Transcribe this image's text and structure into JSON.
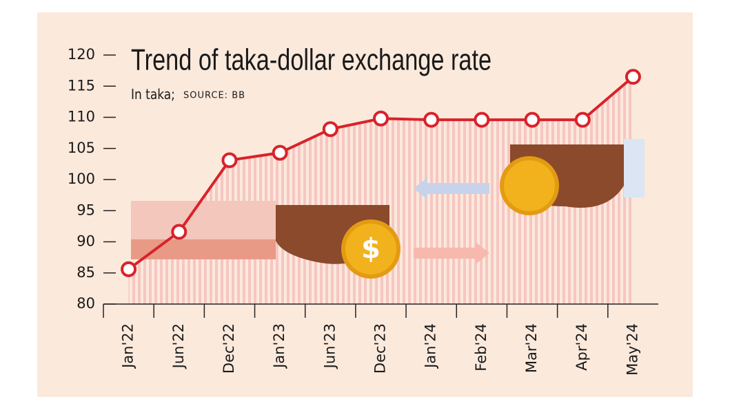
{
  "chart_data": {
    "type": "line",
    "title": "Trend of taka-dollar exchange rate",
    "subtitle": "In taka;",
    "source": "SOURCE: BB",
    "categories": [
      "Jan'22",
      "Jun'22",
      "Dec'22",
      "Jan'23",
      "Jun'23",
      "Dec'23",
      "Jan'24",
      "Feb'24",
      "Mar'24",
      "Apr'24",
      "May'24"
    ],
    "values": [
      85.6,
      91.6,
      103.1,
      104.3,
      108.1,
      109.8,
      109.6,
      109.6,
      109.6,
      109.6,
      116.5
    ],
    "color": "#d9222a",
    "ylim": [
      80,
      120
    ],
    "yticks": [
      80,
      85,
      90,
      95,
      100,
      105,
      110,
      115,
      120
    ]
  }
}
